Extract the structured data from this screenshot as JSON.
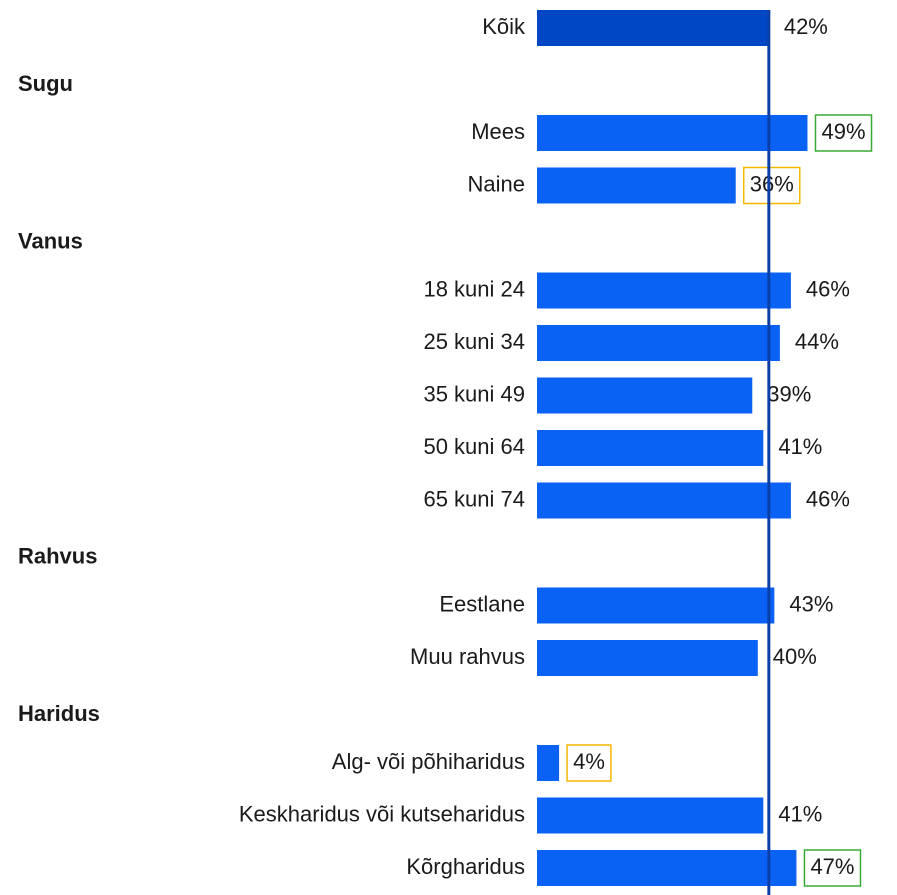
{
  "chart_data": {
    "type": "bar",
    "xlim": [
      0,
      50
    ],
    "reference_line": {
      "value": 42,
      "color": "#0b3fa8"
    },
    "groups": [
      {
        "categories": [
          "Kõik"
        ],
        "values": [
          42
        ],
        "value_labels": [
          "42%"
        ],
        "color": "#0047c6",
        "label_boxes": [
          null
        ]
      },
      {
        "name": "Sugu",
        "categories": [
          "Mees",
          "Naine"
        ],
        "values": [
          49,
          36
        ],
        "value_labels": [
          "49%",
          "36%"
        ],
        "color": "#0a62f5",
        "label_boxes": [
          "#3aaa35",
          "#f5b700"
        ]
      },
      {
        "name": "Vanus",
        "categories": [
          "18 kuni 24",
          "25 kuni 34",
          "35 kuni 49",
          "50 kuni 64",
          "65 kuni 74"
        ],
        "values": [
          46,
          44,
          39,
          41,
          46
        ],
        "value_labels": [
          "46%",
          "44%",
          "39%",
          "41%",
          "46%"
        ],
        "color": "#0a62f5",
        "label_boxes": [
          null,
          null,
          null,
          null,
          null
        ]
      },
      {
        "name": "Rahvus",
        "categories": [
          "Eestlane",
          "Muu rahvus"
        ],
        "values": [
          43,
          40
        ],
        "value_labels": [
          "43%",
          "40%"
        ],
        "color": "#0a62f5",
        "label_boxes": [
          null,
          null
        ]
      },
      {
        "name": "Haridus",
        "categories": [
          "Alg- või põhiharidus",
          "Keskharidus või kutseharidus",
          "Kõrgharidus"
        ],
        "values": [
          4,
          41,
          47
        ],
        "value_labels": [
          "4%",
          "41%",
          "47%"
        ],
        "color": "#0a62f5",
        "label_boxes": [
          "#f5b700",
          null,
          "#3aaa35"
        ]
      }
    ]
  }
}
